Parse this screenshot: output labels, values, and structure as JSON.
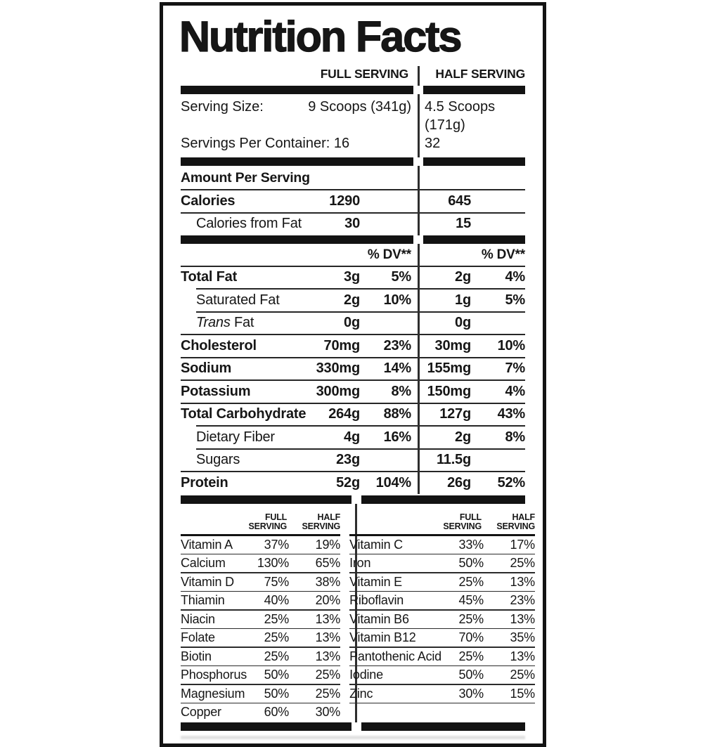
{
  "title": "Nutrition Facts",
  "columns": {
    "full": "FULL SERVING",
    "half": "HALF SERVING"
  },
  "serving": {
    "size_label": "Serving Size:",
    "full_size": "9 Scoops (341g)",
    "half_size": "4.5 Scoops (171g)",
    "container_full": "Servings Per Container: 16",
    "container_half": "32"
  },
  "amount_per_serving": "Amount Per Serving",
  "calories": {
    "label": "Calories",
    "full": "1290",
    "half": "645"
  },
  "calories_from_fat": {
    "label": "Calories from Fat",
    "full": "30",
    "half": "15"
  },
  "dv_header": "% DV**",
  "nutrients": [
    {
      "label": "Total Fat",
      "bold": true,
      "indent": false,
      "sep": "full",
      "full_amount": "3g",
      "full_dv": "5%",
      "half_amount": "2g",
      "half_dv": "4%"
    },
    {
      "label": "Saturated Fat",
      "bold": false,
      "indent": true,
      "sep": "indent",
      "full_amount": "2g",
      "full_dv": "10%",
      "half_amount": "1g",
      "half_dv": "5%"
    },
    {
      "label_italic": "Trans",
      "label": " Fat",
      "bold": false,
      "indent": true,
      "sep": "indent",
      "full_amount": "0g",
      "full_dv": "",
      "half_amount": "0g",
      "half_dv": ""
    },
    {
      "label": "Cholesterol",
      "bold": true,
      "indent": false,
      "sep": "full",
      "full_amount": "70mg",
      "full_dv": "23%",
      "half_amount": "30mg",
      "half_dv": "10%"
    },
    {
      "label": "Sodium",
      "bold": true,
      "indent": false,
      "sep": "full",
      "full_amount": "330mg",
      "full_dv": "14%",
      "half_amount": "155mg",
      "half_dv": "7%"
    },
    {
      "label": "Potassium",
      "bold": true,
      "indent": false,
      "sep": "full",
      "full_amount": "300mg",
      "full_dv": "8%",
      "half_amount": "150mg",
      "half_dv": "4%"
    },
    {
      "label": "Total Carbohydrate",
      "bold": true,
      "indent": false,
      "sep": "full",
      "full_amount": "264g",
      "full_dv": "88%",
      "half_amount": "127g",
      "half_dv": "43%"
    },
    {
      "label": "Dietary Fiber",
      "bold": false,
      "indent": true,
      "sep": "indent",
      "full_amount": "4g",
      "full_dv": "16%",
      "half_amount": "2g",
      "half_dv": "8%"
    },
    {
      "label": "Sugars",
      "bold": false,
      "indent": true,
      "sep": "indent",
      "full_amount": "23g",
      "full_dv": "",
      "half_amount": "11.5g",
      "half_dv": ""
    },
    {
      "label": "Protein",
      "bold": true,
      "indent": false,
      "sep": "full",
      "full_amount": "52g",
      "full_dv": "104%",
      "half_amount": "26g",
      "half_dv": "52%"
    }
  ],
  "vitamins": {
    "col_full": "FULL SERVING",
    "col_half": "HALF SERVING",
    "left": [
      {
        "name": "Vitamin A",
        "full": "37%",
        "half": "19%"
      },
      {
        "name": "Calcium",
        "full": "130%",
        "half": "65%"
      },
      {
        "name": "Vitamin D",
        "full": "75%",
        "half": "38%"
      },
      {
        "name": "Thiamin",
        "full": "40%",
        "half": "20%"
      },
      {
        "name": "Niacin",
        "full": "25%",
        "half": "13%"
      },
      {
        "name": "Folate",
        "full": "25%",
        "half": "13%"
      },
      {
        "name": "Biotin",
        "full": "25%",
        "half": "13%"
      },
      {
        "name": "Phosphorus",
        "full": "50%",
        "half": "25%"
      },
      {
        "name": "Magnesium",
        "full": "50%",
        "half": "25%"
      },
      {
        "name": "Copper",
        "full": "60%",
        "half": "30%"
      }
    ],
    "right": [
      {
        "name": "Vitamin C",
        "full": "33%",
        "half": "17%"
      },
      {
        "name": "Iron",
        "full": "50%",
        "half": "25%"
      },
      {
        "name": "Vitamin E",
        "full": "25%",
        "half": "13%"
      },
      {
        "name": "Riboflavin",
        "full": "45%",
        "half": "23%"
      },
      {
        "name": "Vitamin B6",
        "full": "25%",
        "half": "13%"
      },
      {
        "name": "Vitamin B12",
        "full": "70%",
        "half": "35%"
      },
      {
        "name": "Pantothenic Acid",
        "full": "25%",
        "half": "13%"
      },
      {
        "name": "Iodine",
        "full": "50%",
        "half": "25%"
      },
      {
        "name": "Zinc",
        "full": "30%",
        "half": "15%"
      }
    ]
  }
}
